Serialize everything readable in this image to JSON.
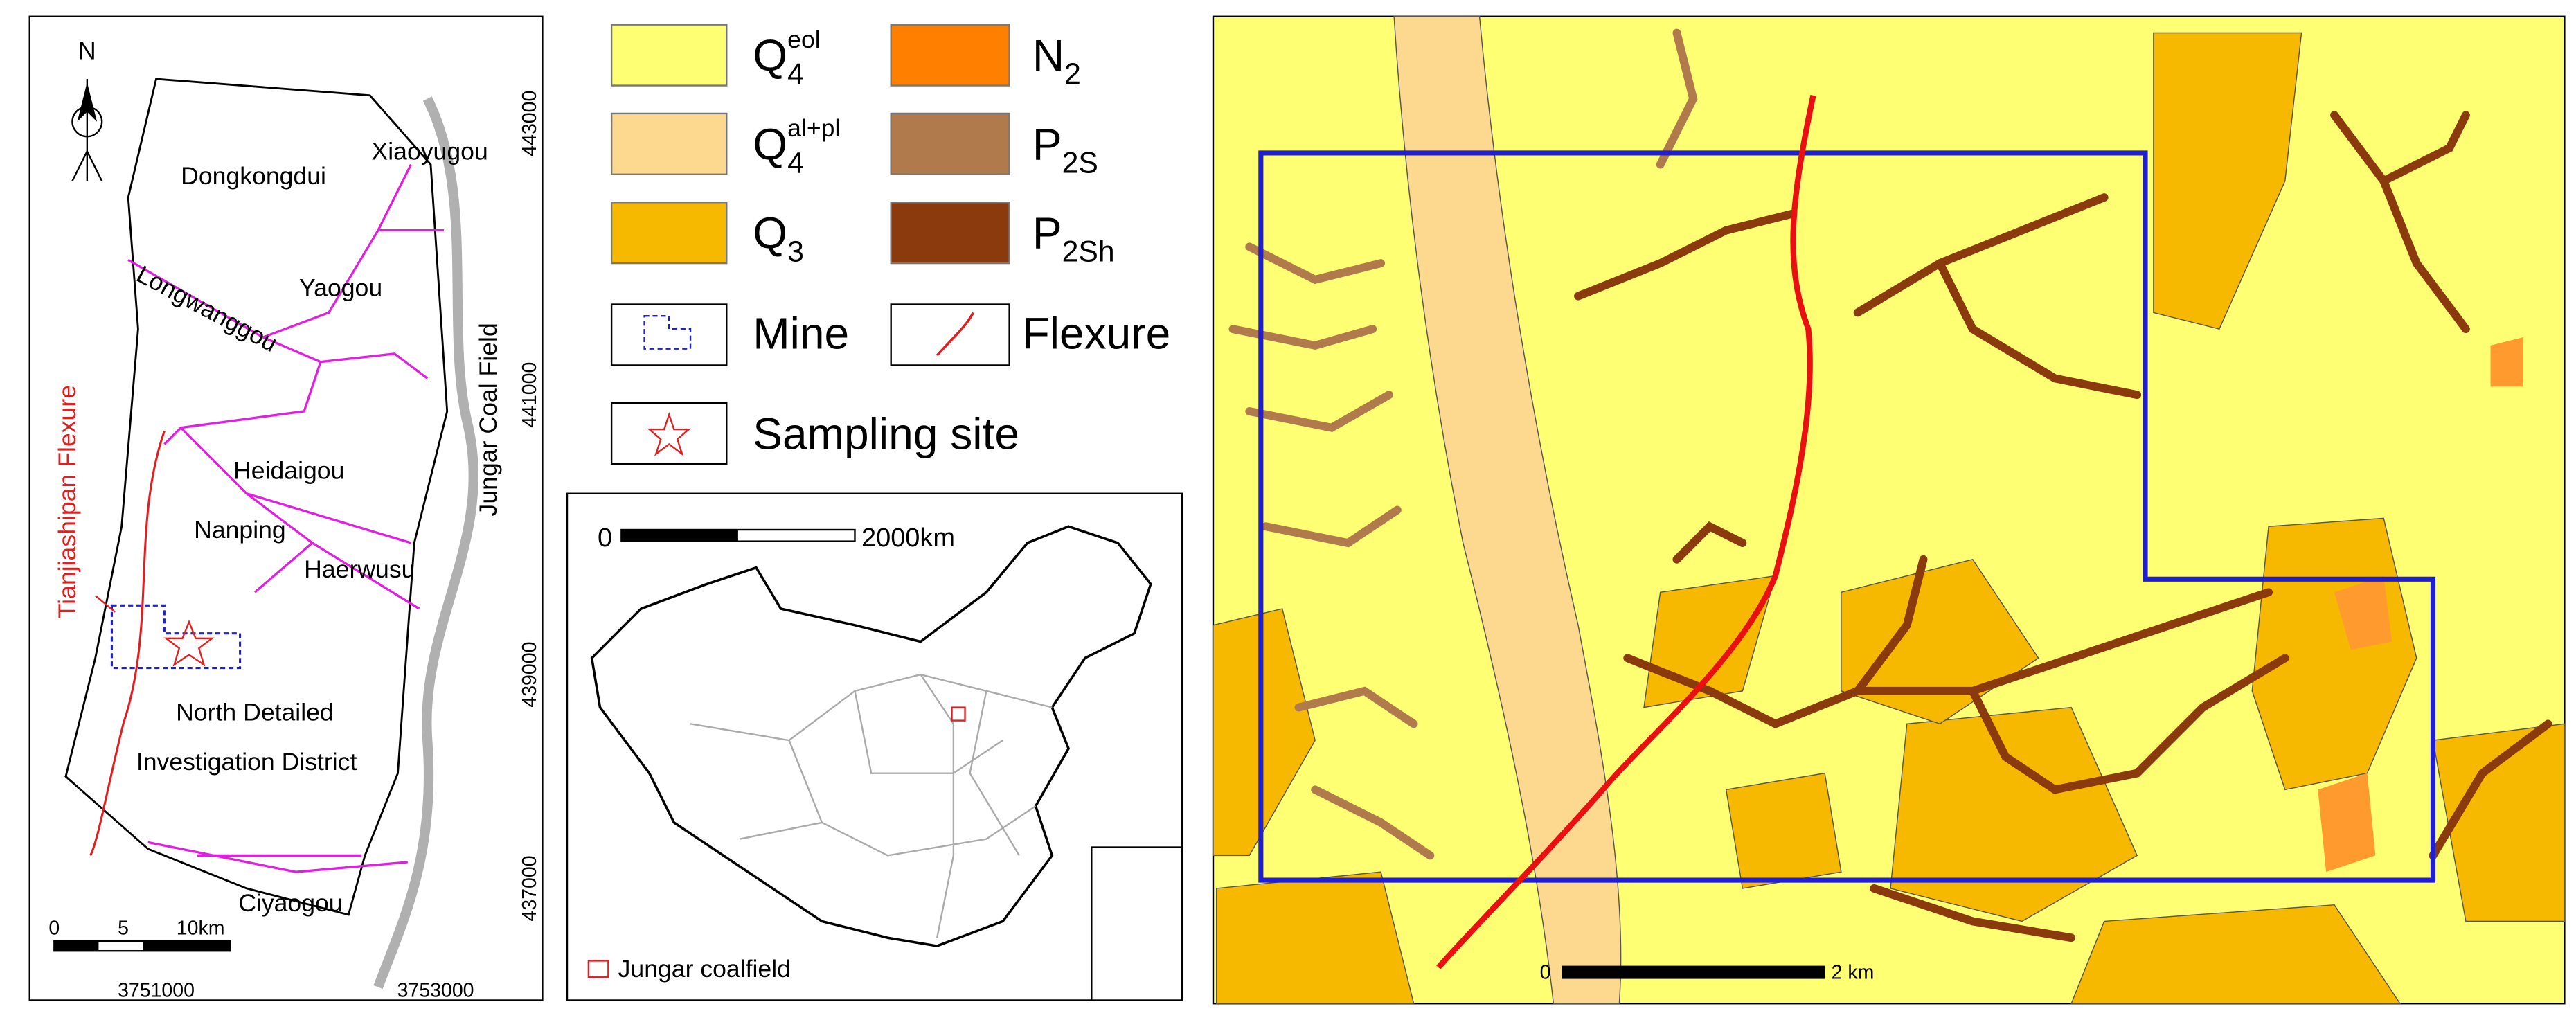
{
  "left_map": {
    "north": "N",
    "places": [
      "Dongkongdui",
      "Xiaoyugou",
      "Yaogou",
      "Longwanggou",
      "Heidaigou",
      "Nanping",
      "Haerwusu",
      "North Detailed",
      "Investigation District",
      "Ciyaogou"
    ],
    "flexure_label": "Tianjiashipan Flexure",
    "coal_field_label": "Jungar Coal Field",
    "y_coords": [
      "443000",
      "441000",
      "439000",
      "437000"
    ],
    "x_coords": [
      "3751000",
      "3753000"
    ],
    "scale": [
      "0",
      "5",
      "10km"
    ]
  },
  "legend": {
    "items": [
      {
        "symbol": "Q",
        "sub": "4",
        "sup": "eol"
      },
      {
        "symbol": "Q",
        "sub": "4",
        "sup": "al+pl"
      },
      {
        "symbol": "Q",
        "sub": "3"
      },
      {
        "symbol": "N",
        "sub": "2"
      },
      {
        "symbol": "P",
        "sub": "2S"
      },
      {
        "symbol": "P",
        "sub": "2Sh"
      }
    ],
    "mine": "Mine",
    "flexure": "Flexure",
    "sampling_site": "Sampling site"
  },
  "inset": {
    "scale": [
      "0",
      "2000km"
    ],
    "label": "Jungar coalfield"
  },
  "right_map": {
    "scale": [
      "0",
      "2 km"
    ]
  }
}
